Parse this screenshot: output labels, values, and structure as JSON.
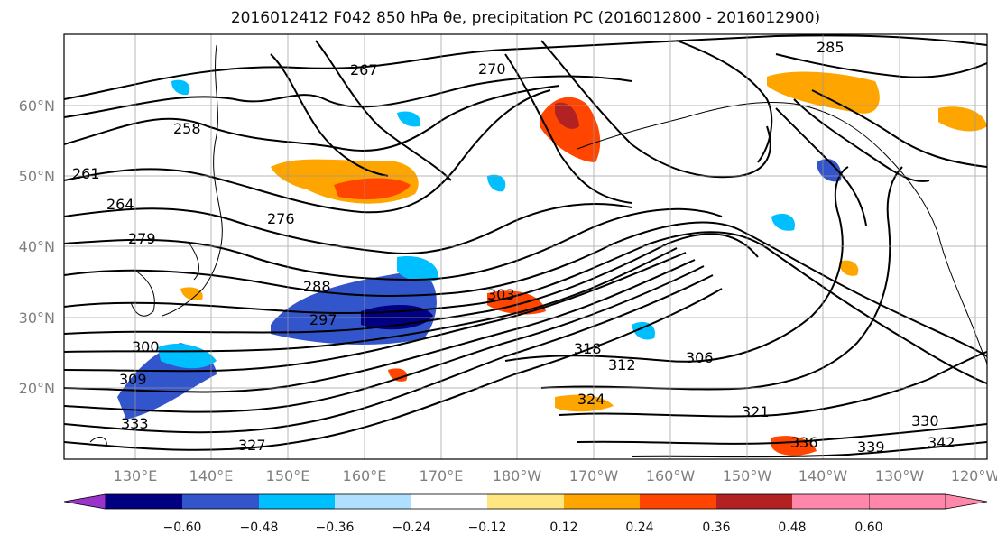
{
  "title_text": "2016012412 F042 850 hPa θe, precipitation PC (2016012800 - 2016012900)",
  "lat_labels": [
    "60°N",
    "50°N",
    "40°N",
    "30°N",
    "20°N"
  ],
  "lon_labels": [
    "130°E",
    "140°E",
    "150°E",
    "160°E",
    "170°E",
    "180°W",
    "170°W",
    "160°W",
    "150°W",
    "140°W",
    "130°W",
    "120°W"
  ],
  "colorbar": {
    "colors": [
      "#9933cc",
      "#000080",
      "#3355cc",
      "#00bfff",
      "#b0e0ff",
      "#ffffff",
      "#ffe680",
      "#ffa500",
      "#ff4500",
      "#b22222",
      "#ff88aa"
    ],
    "tick_labels": [
      "−0.60",
      "−0.48",
      "−0.36",
      "−0.24",
      "−0.12",
      "0.12",
      "0.24",
      "0.36",
      "0.48",
      "0.60"
    ]
  },
  "contour_labels": [
    "267",
    "258",
    "264",
    "261",
    "276",
    "279",
    "270",
    "288",
    "285",
    "297",
    "300",
    "303",
    "309",
    "312",
    "306",
    "318",
    "321",
    "324",
    "327",
    "330",
    "333",
    "336",
    "339",
    "342"
  ]
}
